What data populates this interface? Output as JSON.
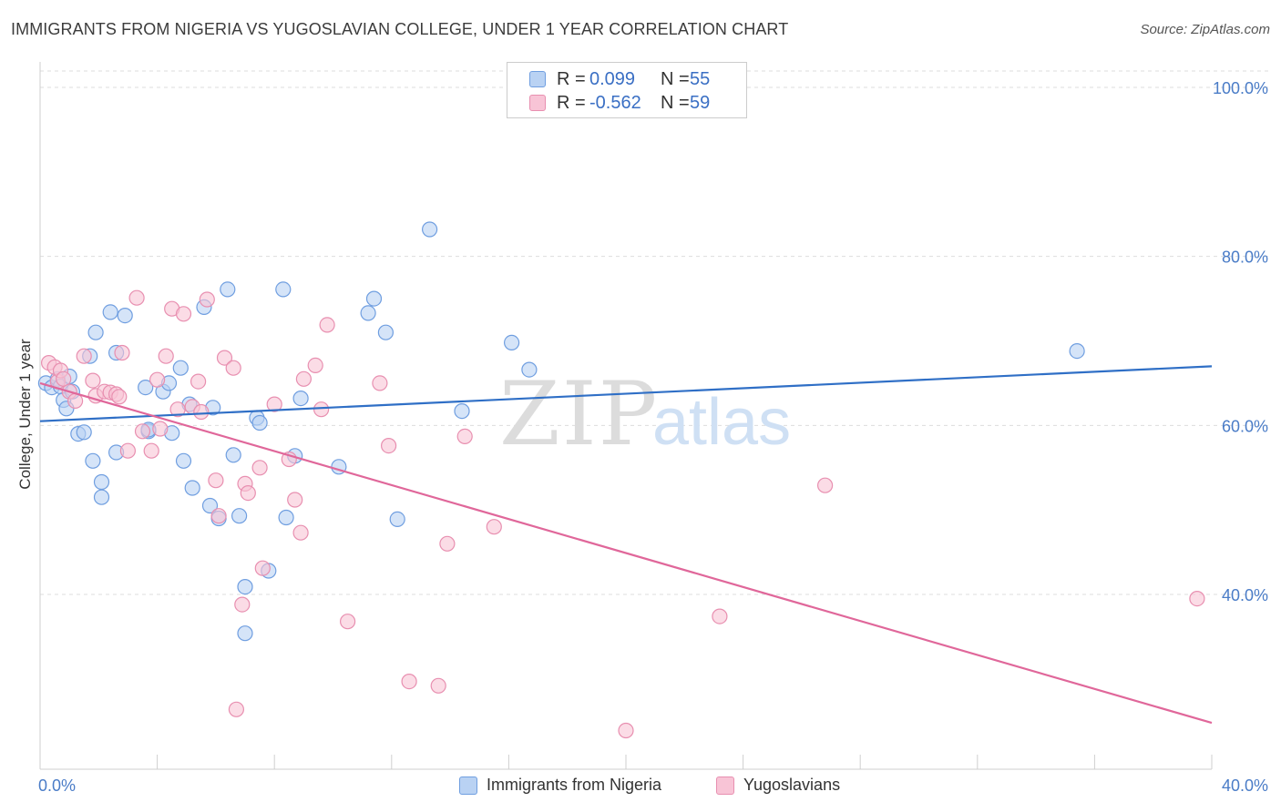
{
  "header": {
    "title": "IMMIGRANTS FROM NIGERIA VS YUGOSLAVIAN COLLEGE, UNDER 1 YEAR CORRELATION CHART",
    "source": "Source: ZipAtlas.com"
  },
  "watermark": {
    "zip": "ZIP",
    "atlas": "atlas"
  },
  "legend": {
    "rows": [
      {
        "r_label": "R =",
        "r_value": "0.099",
        "n_label": "N =",
        "n_value": "55"
      },
      {
        "r_label": "R =",
        "r_value": "-0.562",
        "n_label": "N =",
        "n_value": "59"
      }
    ]
  },
  "bottom_legend": {
    "series1": "Immigrants from Nigeria",
    "series2": "Yugoslavians"
  },
  "colors": {
    "blue_fill": "#b9d2f3",
    "blue_stroke": "#6f9ee0",
    "blue_line": "#2f6fc6",
    "pink_fill": "#f8c4d6",
    "pink_stroke": "#e88fb0",
    "pink_line": "#e0679a",
    "grid": "#dddddd",
    "tick_text": "#4a7cc7"
  },
  "chart_data": {
    "type": "scatter",
    "title": "IMMIGRANTS FROM NIGERIA VS YUGOSLAVIAN COLLEGE, UNDER 1 YEAR CORRELATION CHART",
    "xlabel": "",
    "ylabel": "College, Under 1 year",
    "xlim": [
      0,
      40
    ],
    "ylim": [
      22,
      103
    ],
    "x_tick_labels": [
      "0.0%",
      "40.0%"
    ],
    "y_ticks": [
      40,
      60,
      80,
      100
    ],
    "y_tick_labels": [
      "40.0%",
      "60.0%",
      "80.0%",
      "100.0%"
    ],
    "series": [
      {
        "name": "Immigrants from Nigeria",
        "color": "#6f9ee0",
        "trend": {
          "x": [
            0,
            40
          ],
          "y": [
            60.5,
            67.0
          ]
        },
        "points": [
          [
            0.2,
            65.0
          ],
          [
            0.4,
            64.5
          ],
          [
            0.6,
            65.5
          ],
          [
            0.7,
            64.6
          ],
          [
            0.8,
            63.0
          ],
          [
            0.9,
            62.0
          ],
          [
            1.0,
            65.8
          ],
          [
            1.1,
            64.0
          ],
          [
            1.3,
            59.0
          ],
          [
            1.5,
            59.2
          ],
          [
            1.7,
            68.2
          ],
          [
            1.8,
            55.8
          ],
          [
            1.9,
            71.0
          ],
          [
            2.1,
            53.3
          ],
          [
            2.1,
            51.5
          ],
          [
            2.4,
            73.4
          ],
          [
            2.6,
            56.8
          ],
          [
            2.6,
            68.6
          ],
          [
            2.9,
            73.0
          ],
          [
            3.7,
            59.3
          ],
          [
            3.7,
            59.5
          ],
          [
            3.6,
            64.5
          ],
          [
            4.2,
            64.0
          ],
          [
            4.4,
            65.0
          ],
          [
            4.5,
            59.1
          ],
          [
            4.8,
            66.8
          ],
          [
            4.9,
            55.8
          ],
          [
            5.1,
            62.5
          ],
          [
            5.2,
            52.6
          ],
          [
            5.6,
            74.0
          ],
          [
            5.8,
            50.5
          ],
          [
            5.9,
            62.1
          ],
          [
            6.1,
            49.0
          ],
          [
            6.4,
            76.1
          ],
          [
            6.6,
            56.5
          ],
          [
            6.8,
            49.3
          ],
          [
            7.0,
            40.9
          ],
          [
            7.0,
            35.4
          ],
          [
            7.4,
            60.9
          ],
          [
            7.5,
            60.3
          ],
          [
            7.8,
            42.8
          ],
          [
            8.3,
            76.1
          ],
          [
            8.4,
            49.1
          ],
          [
            8.7,
            56.4
          ],
          [
            8.9,
            63.2
          ],
          [
            10.2,
            55.1
          ],
          [
            11.2,
            73.3
          ],
          [
            11.4,
            75.0
          ],
          [
            11.8,
            71.0
          ],
          [
            12.2,
            48.9
          ],
          [
            13.3,
            83.2
          ],
          [
            14.4,
            61.7
          ],
          [
            16.1,
            69.8
          ],
          [
            16.7,
            66.6
          ],
          [
            35.4,
            68.8
          ]
        ]
      },
      {
        "name": "Yugoslavians",
        "color": "#e88fb0",
        "trend": {
          "x": [
            0,
            40
          ],
          "y": [
            65.0,
            24.8
          ]
        },
        "points": [
          [
            0.3,
            67.4
          ],
          [
            0.5,
            66.9
          ],
          [
            0.6,
            65.2
          ],
          [
            0.7,
            66.5
          ],
          [
            0.8,
            65.5
          ],
          [
            1.0,
            64.0
          ],
          [
            1.2,
            62.9
          ],
          [
            1.5,
            68.2
          ],
          [
            1.8,
            65.3
          ],
          [
            1.9,
            63.5
          ],
          [
            2.2,
            64.0
          ],
          [
            2.4,
            63.9
          ],
          [
            2.6,
            63.7
          ],
          [
            2.7,
            63.4
          ],
          [
            2.8,
            68.6
          ],
          [
            3.0,
            57.0
          ],
          [
            3.3,
            75.1
          ],
          [
            3.5,
            59.3
          ],
          [
            3.8,
            57.0
          ],
          [
            4.0,
            65.4
          ],
          [
            4.1,
            59.6
          ],
          [
            4.3,
            68.2
          ],
          [
            4.5,
            73.8
          ],
          [
            4.7,
            61.9
          ],
          [
            4.9,
            73.2
          ],
          [
            5.2,
            62.2
          ],
          [
            5.4,
            65.2
          ],
          [
            5.5,
            61.6
          ],
          [
            5.7,
            74.9
          ],
          [
            6.0,
            53.5
          ],
          [
            6.1,
            49.3
          ],
          [
            6.3,
            68.0
          ],
          [
            6.6,
            66.8
          ],
          [
            6.7,
            26.4
          ],
          [
            6.9,
            38.8
          ],
          [
            7.0,
            53.1
          ],
          [
            7.1,
            52.0
          ],
          [
            7.5,
            55.0
          ],
          [
            7.6,
            43.1
          ],
          [
            8.0,
            62.5
          ],
          [
            8.5,
            56.0
          ],
          [
            8.7,
            51.2
          ],
          [
            8.9,
            47.3
          ],
          [
            9.0,
            65.5
          ],
          [
            9.4,
            67.1
          ],
          [
            9.6,
            61.9
          ],
          [
            9.8,
            71.9
          ],
          [
            10.5,
            36.8
          ],
          [
            11.6,
            65.0
          ],
          [
            11.9,
            57.6
          ],
          [
            12.6,
            29.7
          ],
          [
            13.6,
            29.2
          ],
          [
            13.9,
            46.0
          ],
          [
            14.5,
            58.7
          ],
          [
            15.5,
            48.0
          ],
          [
            20.0,
            23.9
          ],
          [
            23.2,
            37.4
          ],
          [
            26.8,
            52.9
          ],
          [
            39.5,
            39.5
          ]
        ]
      }
    ]
  }
}
